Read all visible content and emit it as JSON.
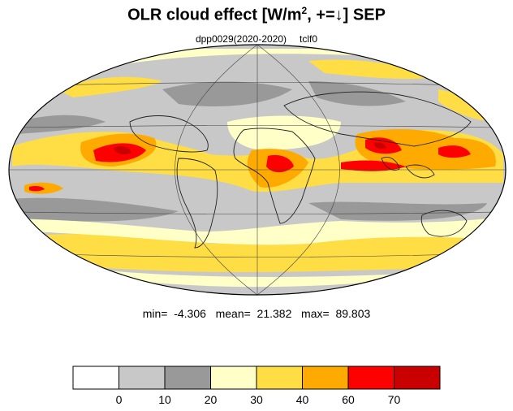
{
  "title": {
    "prefix": "OLR cloud effect [W/m",
    "sup": "2",
    "suffix": ", +=↓]  SEP"
  },
  "subtitle": {
    "run": "dpp0029(2020-2020)",
    "var": "tclf0"
  },
  "stats": {
    "text": "min=  -4.306   mean=  21.382   max=  89.803"
  },
  "colorbar": {
    "colors": [
      "#ffffff",
      "#c8c8c8",
      "#999999",
      "#ffffc8",
      "#ffdd44",
      "#ffaa00",
      "#ff0000",
      "#c80000"
    ],
    "labels": [
      "0",
      "10",
      "20",
      "30",
      "40",
      "60",
      "70"
    ]
  },
  "map": {
    "projection": "mollweide",
    "fill_colors": {
      "light_gray": "#c8c8c8",
      "dark_gray": "#999999",
      "pale_yellow": "#ffffc8",
      "yellow": "#ffdd44",
      "orange": "#ffaa00",
      "red": "#ff0000",
      "dark_red": "#c80000"
    }
  }
}
